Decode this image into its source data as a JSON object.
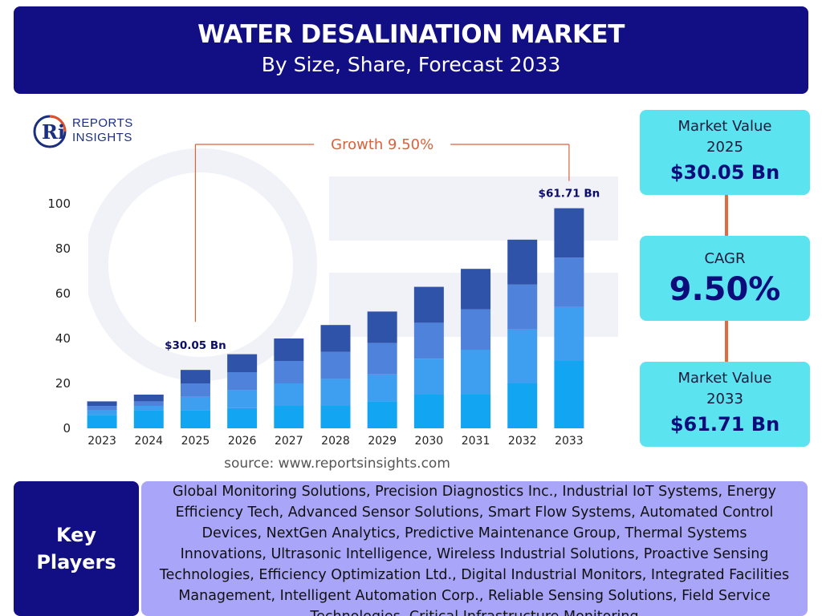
{
  "header": {
    "title": "WATER DESALINATION MARKET",
    "subtitle": "By Size, Share, Forecast 2033"
  },
  "logo": {
    "line1": "REPORTS",
    "line2": "INSIGHTS",
    "mark": "Ri"
  },
  "chart_data": {
    "type": "bar",
    "stacked": true,
    "categories": [
      "2023",
      "2024",
      "2025",
      "2026",
      "2027",
      "2028",
      "2029",
      "2030",
      "2031",
      "2032",
      "2033"
    ],
    "series": [
      {
        "values": [
          6,
          8,
          8,
          9,
          10,
          10,
          12,
          15,
          15,
          20,
          30
        ]
      },
      {
        "values": [
          2,
          2,
          6,
          8,
          10,
          12,
          12,
          16,
          20,
          24,
          24
        ]
      },
      {
        "values": [
          2,
          2,
          6,
          8,
          10,
          12,
          14,
          16,
          18,
          20,
          22
        ]
      },
      {
        "values": [
          2,
          3,
          6,
          8,
          10,
          12,
          14,
          16,
          18,
          20,
          22
        ]
      }
    ],
    "colors": [
      "#12a6f2",
      "#3e9ef0",
      "#4f82db",
      "#2f53a8"
    ],
    "ylim": [
      0,
      100
    ],
    "yticks": [
      0,
      20,
      40,
      60,
      80,
      100
    ],
    "grid": false,
    "annotations": {
      "start_label": "$30.05 Bn",
      "end_label": "$61.71 Bn",
      "growth_label": "Growth  9.50%",
      "start_category": "2025",
      "end_category": "2033"
    }
  },
  "source": "source: www.reportsinsights.com",
  "cards": {
    "value_2025": {
      "label_line1": "Market Value",
      "label_line2": "2025",
      "value": "$30.05 Bn"
    },
    "cagr": {
      "label": "CAGR",
      "value": "9.50%"
    },
    "value_2033": {
      "label_line1": "Market Value",
      "label_line2": "2033",
      "value": "$61.71 Bn"
    }
  },
  "colors": {
    "header_bg": "#120f85",
    "card_bg": "#5ce3f0",
    "connector": "#e06b42",
    "players_bg": "#a9a5f8"
  },
  "key_players": {
    "title_line1": "Key",
    "title_line2": "Players",
    "lines": [
      "Global Monitoring Solutions, Precision Diagnostics Inc., Industrial IoT Systems, Energy",
      "Efficiency Tech, Advanced Sensor Solutions, Smart Flow Systems, Automated Control",
      "Devices, NextGen Analytics, Predictive Maintenance Group, Thermal Systems",
      "Innovations, Ultrasonic Intelligence, Wireless Industrial Solutions, Proactive Sensing",
      "Technologies, Efficiency Optimization Ltd., Digital Industrial Monitors, Integrated Facilities",
      "Management, Intelligent Automation Corp., Reliable Sensing Solutions, Field Service",
      "Technologies, Critical Infrastructure Monitoring"
    ]
  }
}
